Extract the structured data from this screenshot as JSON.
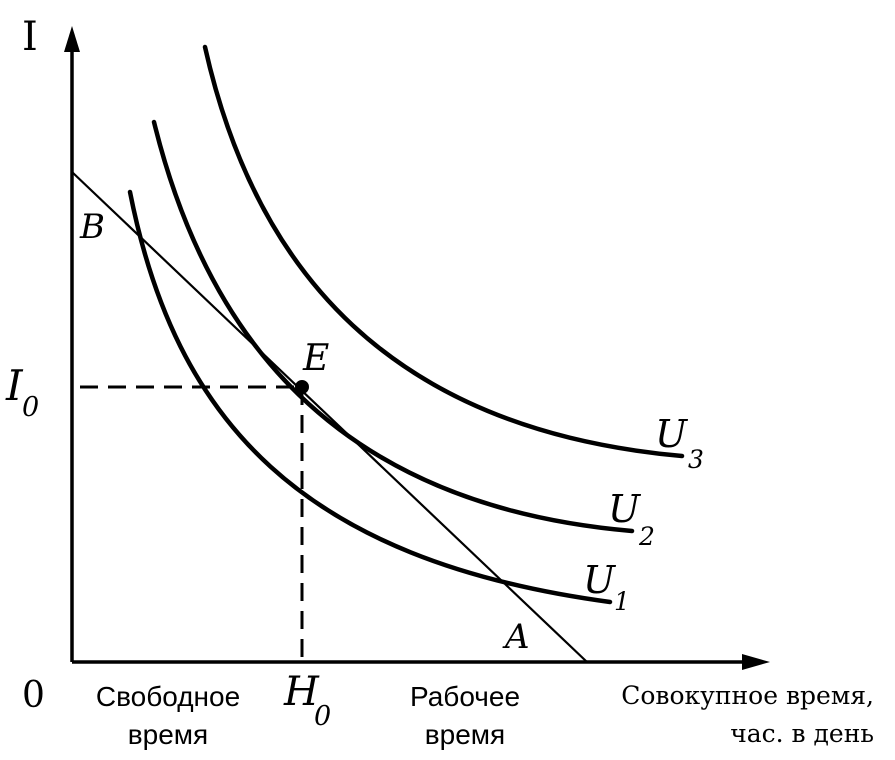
{
  "axes": {
    "y_label": "I",
    "origin_label": "0"
  },
  "points": {
    "e_label": "E",
    "a_label": "A",
    "b_label": "B",
    "i0_main": "I",
    "i0_sub": "0",
    "h0_main": "H",
    "h0_sub": "0"
  },
  "curves": {
    "u1": {
      "main": "U",
      "sub": "1"
    },
    "u2": {
      "main": "U",
      "sub": "2"
    },
    "u3": {
      "main": "U",
      "sub": "3"
    }
  },
  "x_labels": {
    "free_time_line1": "Свободное",
    "free_time_line2": "время",
    "work_time_line1": "Рабочее",
    "work_time_line2": "время",
    "total_time_line1": "Совокупное время,",
    "total_time_line2": "час. в день"
  }
}
